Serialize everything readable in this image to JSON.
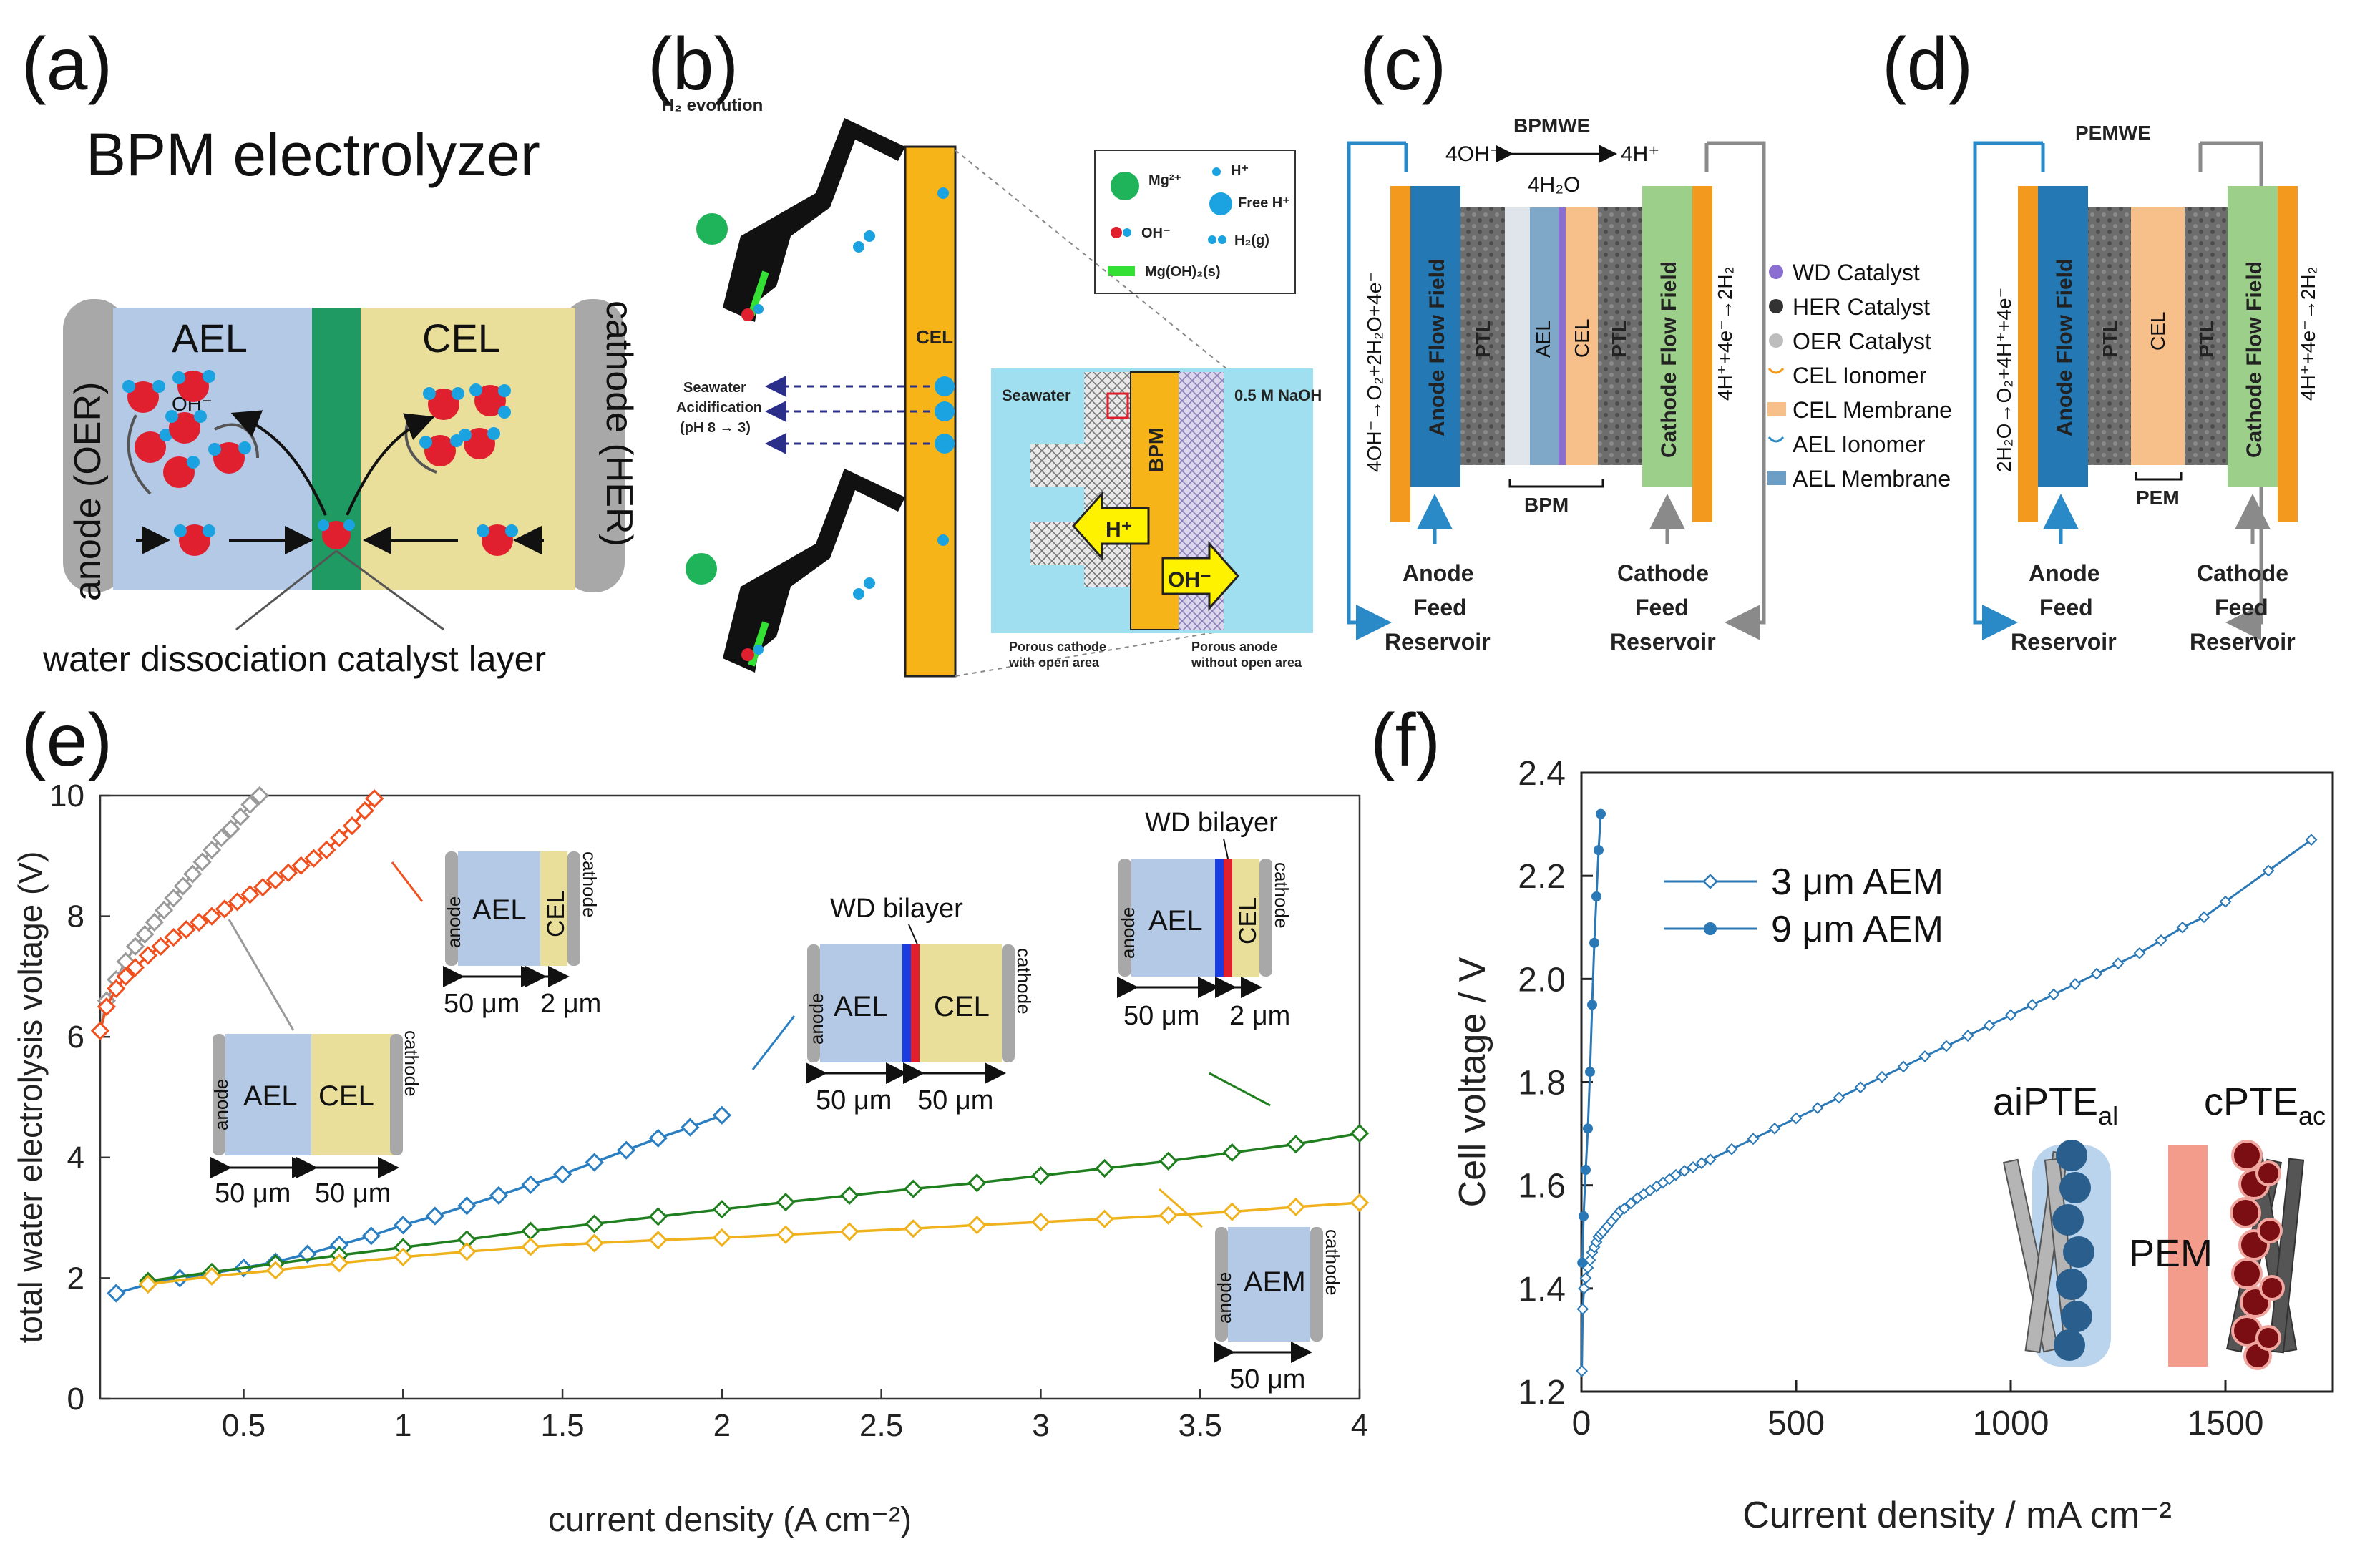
{
  "panels": {
    "a": {
      "label": "(a)",
      "title": "BPM electrolyzer",
      "anode": "anode (OER)",
      "cathode": "cathode (HER)",
      "ael": "AEL",
      "cel": "CEL",
      "oh": "OH⁻",
      "caption": "water dissociation catalyst layer"
    },
    "b": {
      "label": "(b)",
      "h2evolution": "H₂ evolution",
      "cel": "CEL",
      "acid1": "Seawater",
      "acid2": "Acidification",
      "acid3": "(pH 8 → 3)",
      "legend": [
        "Mg²⁺",
        "H⁺",
        "Free H⁺",
        "OH⁻",
        "H₂(g)",
        "Mg(OH)₂(s)"
      ],
      "seawater": "Seawater",
      "naoh": "0.5 M NaOH",
      "bpm": "BPM",
      "hplus": "H⁺",
      "ohminus": "OH⁻",
      "porous_cathode": "Porous cathode",
      "open_area": "with open area",
      "porous_anode": "Porous anode",
      "no_open_area": "without open area"
    },
    "c": {
      "label": "(c)",
      "title": "BPMWE",
      "top_left": "4OH⁻",
      "top_right": "4H⁺",
      "water": "4H₂O",
      "anode_rxn": "4OH⁻→O₂+2H₂O+4e⁻",
      "cathode_rxn": "4H⁺+4e⁻→2H₂",
      "anode_ff": "Anode Flow Field",
      "cathode_ff": "Cathode Flow Field",
      "ptl": "PTL",
      "ael": "AEL",
      "cel": "CEL",
      "bpm": "BPM",
      "anode_feed": [
        "Anode",
        "Feed",
        "Reservoir"
      ],
      "cathode_feed": [
        "Cathode",
        "Feed",
        "Reservoir"
      ],
      "legend": [
        "WD Catalyst",
        "HER Catalyst",
        "OER Catalyst",
        "CEL Ionomer",
        "CEL Membrane",
        "AEL Ionomer",
        "AEL Membrane"
      ]
    },
    "d": {
      "label": "(d)",
      "title": "PEMWE",
      "anode_rxn": "2H₂O→O₂+4H⁺+4e⁻",
      "cathode_rxn": "4H⁺+4e⁻→2H₂",
      "anode_ff": "Anode Flow Field",
      "cathode_ff": "Cathode Flow Field",
      "ptl": "PTL",
      "cel": "CEL",
      "pem": "PEM",
      "anode_feed": [
        "Anode",
        "Feed",
        "Reservoir"
      ],
      "cathode_feed": [
        "Cathode",
        "Feed",
        "Reservoir"
      ]
    },
    "e": {
      "label": "(e)"
    },
    "f": {
      "label": "(f)"
    }
  },
  "colors": {
    "ael": "#b4c9e6",
    "cel": "#e9df9b",
    "wd_green": "#1e9a62",
    "cel_orange": "#f6b419",
    "anode_blue": "#2479b4",
    "cathode_green": "#9ccf8a",
    "orange_bar": "#f39a1e",
    "series_blue": "#2a7ec2",
    "series_green": "#1f7f1f",
    "series_orange": "#f0b21c",
    "series_red": "#f0501e",
    "series_grey": "#9a9a9a",
    "f_line": "#2a78b5"
  },
  "chart_data": [
    {
      "type": "line",
      "xlabel": "current density (A cm⁻²)",
      "ylabel": "total water electrolysis voltage (V)",
      "xlim": [
        0.05,
        4
      ],
      "ylim": [
        0,
        10
      ],
      "xticks": [
        "0.5",
        "1",
        "1.5",
        "2",
        "2.5",
        "3",
        "3.5",
        "4"
      ],
      "yticks": [
        "0",
        "2",
        "4",
        "6",
        "8",
        "10"
      ],
      "series": [
        {
          "name": "grey",
          "color": "#9a9a9a",
          "x": [
            0.05,
            0.07,
            0.1,
            0.13,
            0.16,
            0.19,
            0.22,
            0.25,
            0.28,
            0.31,
            0.34,
            0.37,
            0.4,
            0.43,
            0.46,
            0.49,
            0.52,
            0.55
          ],
          "y": [
            6.1,
            6.6,
            6.95,
            7.25,
            7.5,
            7.7,
            7.9,
            8.1,
            8.3,
            8.5,
            8.7,
            8.9,
            9.1,
            9.3,
            9.45,
            9.65,
            9.85,
            10.0
          ]
        },
        {
          "name": "red",
          "color": "#f0501e",
          "x": [
            0.05,
            0.07,
            0.1,
            0.13,
            0.16,
            0.2,
            0.24,
            0.28,
            0.32,
            0.36,
            0.4,
            0.44,
            0.48,
            0.52,
            0.56,
            0.6,
            0.64,
            0.68,
            0.72,
            0.76,
            0.8,
            0.84,
            0.88,
            0.91
          ],
          "y": [
            6.1,
            6.5,
            6.8,
            7.0,
            7.15,
            7.35,
            7.5,
            7.65,
            7.78,
            7.9,
            8.0,
            8.12,
            8.24,
            8.36,
            8.48,
            8.6,
            8.72,
            8.84,
            8.96,
            9.1,
            9.3,
            9.5,
            9.75,
            9.95
          ]
        },
        {
          "name": "blue",
          "color": "#2a7ec2",
          "x": [
            0.1,
            0.2,
            0.3,
            0.4,
            0.5,
            0.6,
            0.7,
            0.8,
            0.9,
            1.0,
            1.1,
            1.2,
            1.3,
            1.4,
            1.5,
            1.6,
            1.7,
            1.8,
            1.9,
            2.0
          ],
          "y": [
            1.75,
            1.9,
            2.0,
            2.08,
            2.17,
            2.27,
            2.4,
            2.55,
            2.7,
            2.88,
            3.03,
            3.2,
            3.37,
            3.55,
            3.72,
            3.92,
            4.12,
            4.32,
            4.5,
            4.7
          ]
        },
        {
          "name": "green",
          "color": "#1f7f1f",
          "x": [
            0.2,
            0.4,
            0.6,
            0.8,
            1.0,
            1.2,
            1.4,
            1.6,
            1.8,
            2.0,
            2.2,
            2.4,
            2.6,
            2.8,
            3.0,
            3.2,
            3.4,
            3.6,
            3.8,
            4.0
          ],
          "y": [
            1.95,
            2.1,
            2.24,
            2.38,
            2.51,
            2.64,
            2.78,
            2.9,
            3.02,
            3.14,
            3.26,
            3.37,
            3.48,
            3.58,
            3.7,
            3.82,
            3.94,
            4.08,
            4.22,
            4.4
          ]
        },
        {
          "name": "orange",
          "color": "#f0b21c",
          "x": [
            0.2,
            0.4,
            0.6,
            0.8,
            1.0,
            1.2,
            1.4,
            1.6,
            1.8,
            2.0,
            2.2,
            2.4,
            2.6,
            2.8,
            3.0,
            3.2,
            3.4,
            3.6,
            3.8,
            4.0
          ],
          "y": [
            1.9,
            2.03,
            2.13,
            2.25,
            2.35,
            2.44,
            2.52,
            2.58,
            2.63,
            2.67,
            2.72,
            2.77,
            2.82,
            2.88,
            2.93,
            2.98,
            3.04,
            3.1,
            3.18,
            3.25
          ]
        }
      ],
      "insets": {
        "grey_inset": {
          "anode": "anode",
          "ael": "AEL",
          "cel": "CEL",
          "cathode": "cathode",
          "d1": "50 μm",
          "d2": "50 μm"
        },
        "red_inset": {
          "anode": "anode",
          "ael": "AEL",
          "cel": "CEL",
          "cathode": "cathode",
          "d1": "50 μm",
          "d2": "2 μm"
        },
        "blue_inset": {
          "title": "WD bilayer",
          "anode": "anode",
          "ael": "AEL",
          "cel": "CEL",
          "cathode": "cathode",
          "d1": "50 μm",
          "d2": "50 μm"
        },
        "green_inset": {
          "title": "WD bilayer",
          "anode": "anode",
          "ael": "AEL",
          "cel": "CEL",
          "cathode": "cathode",
          "d1": "50 μm",
          "d2": "2 μm"
        },
        "orange_inset": {
          "anode": "anode",
          "aem": "AEM",
          "cathode": "cathode",
          "d1": "50 μm"
        }
      }
    },
    {
      "type": "line",
      "xlabel": "Current density / mA cm⁻²",
      "ylabel": "Cell voltage / V",
      "xlim": [
        0,
        1750
      ],
      "ylim": [
        1.2,
        2.4
      ],
      "xticks": [
        "0",
        "500",
        "1000",
        "1500"
      ],
      "yticks": [
        "1.2",
        "1.4",
        "1.6",
        "1.8",
        "2.0",
        "2.2",
        "2.4"
      ],
      "series": [
        {
          "name": "3 μm AEM",
          "color": "#2a78b5",
          "marker": "open-diamond",
          "x": [
            1,
            3,
            6,
            10,
            15,
            20,
            25,
            30,
            35,
            40,
            45,
            50,
            60,
            70,
            80,
            90,
            100,
            115,
            130,
            145,
            160,
            175,
            190,
            205,
            220,
            240,
            260,
            280,
            300,
            350,
            400,
            450,
            500,
            550,
            600,
            650,
            700,
            750,
            800,
            850,
            900,
            950,
            1000,
            1050,
            1100,
            1150,
            1200,
            1250,
            1300,
            1350,
            1400,
            1450,
            1500,
            1600,
            1700
          ],
          "y": [
            1.24,
            1.36,
            1.4,
            1.42,
            1.44,
            1.455,
            1.47,
            1.48,
            1.49,
            1.5,
            1.505,
            1.51,
            1.52,
            1.53,
            1.54,
            1.55,
            1.555,
            1.565,
            1.575,
            1.583,
            1.59,
            1.598,
            1.605,
            1.612,
            1.62,
            1.628,
            1.635,
            1.643,
            1.65,
            1.67,
            1.69,
            1.71,
            1.73,
            1.75,
            1.77,
            1.79,
            1.81,
            1.83,
            1.85,
            1.87,
            1.89,
            1.91,
            1.93,
            1.95,
            1.97,
            1.99,
            2.01,
            2.03,
            2.05,
            2.075,
            2.1,
            2.12,
            2.15,
            2.21,
            2.27
          ]
        },
        {
          "name": "9 μm AEM",
          "color": "#2a78b5",
          "marker": "filled-circle",
          "x": [
            2,
            5,
            10,
            15,
            20,
            25,
            30,
            35,
            40,
            45
          ],
          "y": [
            1.45,
            1.54,
            1.63,
            1.71,
            1.82,
            1.95,
            2.07,
            2.16,
            2.25,
            2.32
          ]
        }
      ],
      "inset": {
        "ai": "aiPTE",
        "ai_sub": "al",
        "pem": "PEM",
        "c": "cPTE",
        "c_sub": "ac"
      }
    }
  ]
}
